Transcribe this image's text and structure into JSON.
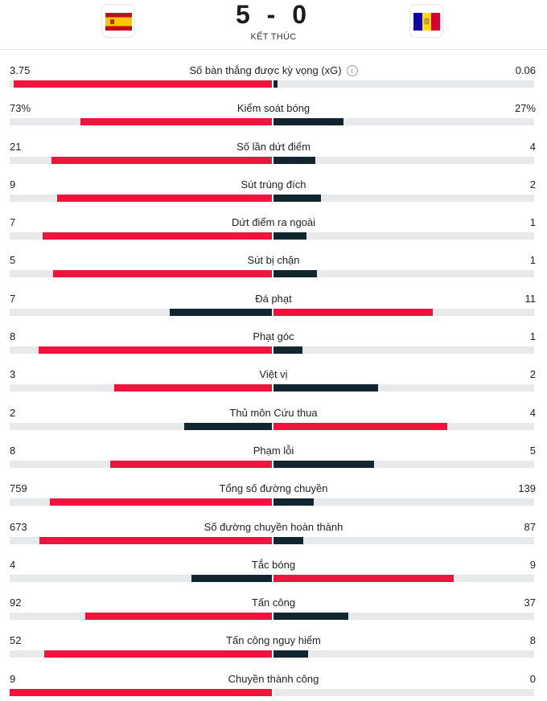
{
  "match": {
    "score": "5 - 0",
    "status": "KẾT THÚC",
    "home_flag": "spain-flag",
    "away_flag": "andorra-flag"
  },
  "colors": {
    "leader": "#f0143c",
    "trailer": "#11262e",
    "track": "#e8e9eb"
  },
  "stats": [
    {
      "label": "Số bàn thắng được kỳ vọng (xG)",
      "home": "3.75",
      "away": "0.06",
      "home_value": 3.75,
      "away_value": 0.06,
      "info": true
    },
    {
      "label": "Kiểm soát bóng",
      "home": "73%",
      "away": "27%",
      "home_value": 73,
      "away_value": 27
    },
    {
      "label": "Số lần dứt điểm",
      "home": "21",
      "away": "4",
      "home_value": 21,
      "away_value": 4
    },
    {
      "label": "Sút trúng đích",
      "home": "9",
      "away": "2",
      "home_value": 9,
      "away_value": 2
    },
    {
      "label": "Dứt điểm ra ngoài",
      "home": "7",
      "away": "1",
      "home_value": 7,
      "away_value": 1
    },
    {
      "label": "Sút bị chặn",
      "home": "5",
      "away": "1",
      "home_value": 5,
      "away_value": 1
    },
    {
      "label": "Đá phạt",
      "home": "7",
      "away": "11",
      "home_value": 7,
      "away_value": 11
    },
    {
      "label": "Phạt góc",
      "home": "8",
      "away": "1",
      "home_value": 8,
      "away_value": 1
    },
    {
      "label": "Việt vị",
      "home": "3",
      "away": "2",
      "home_value": 3,
      "away_value": 2
    },
    {
      "label": "Thủ môn Cứu thua",
      "home": "2",
      "away": "4",
      "home_value": 2,
      "away_value": 4
    },
    {
      "label": "Phạm lỗi",
      "home": "8",
      "away": "5",
      "home_value": 8,
      "away_value": 5
    },
    {
      "label": "Tổng số đường chuyền",
      "home": "759",
      "away": "139",
      "home_value": 759,
      "away_value": 139
    },
    {
      "label": "Số đường chuyền hoàn thành",
      "home": "673",
      "away": "87",
      "home_value": 673,
      "away_value": 87
    },
    {
      "label": "Tắc bóng",
      "home": "4",
      "away": "9",
      "home_value": 4,
      "away_value": 9
    },
    {
      "label": "Tấn công",
      "home": "92",
      "away": "37",
      "home_value": 92,
      "away_value": 37
    },
    {
      "label": "Tấn công nguy hiểm",
      "home": "52",
      "away": "8",
      "home_value": 52,
      "away_value": 8
    },
    {
      "label": "Chuyền thành công",
      "home": "9",
      "away": "0",
      "home_value": 9,
      "away_value": 0
    }
  ]
}
